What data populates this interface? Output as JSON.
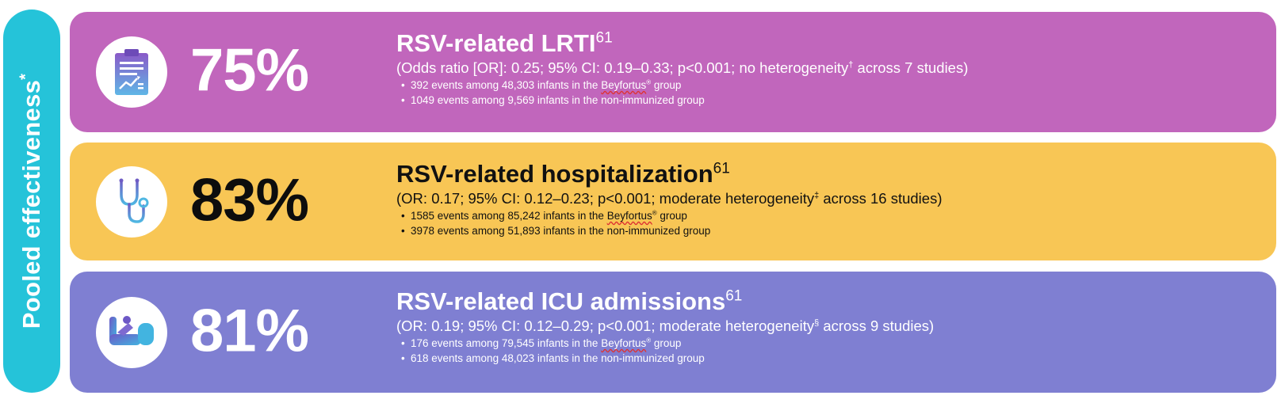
{
  "side_label": {
    "text": "Pooled effectiveness",
    "mark": "*"
  },
  "colors": {
    "side_tab": "#25c3d9",
    "panel_lrti": "#c166bc",
    "panel_hosp": "#f8c655",
    "panel_icu": "#7f7fd2"
  },
  "panels": [
    {
      "icon": "clipboard-chart-icon",
      "percent": "75%",
      "title": "RSV-related LRTI",
      "title_ref": "61",
      "stats": "(Odds ratio [OR]: 0.25; 95% CI: 0.19–0.33; p<0.001; no heterogeneity",
      "stats_mark": "†",
      "stats_tail": " across 7 studies)",
      "bullets": [
        {
          "pre": "392 events among 48,303 infants in the ",
          "brand": "Beyfortus",
          "reg": "®",
          "post": " group"
        },
        {
          "text": "1049 events among 9,569 infants in the non-immunized group"
        }
      ]
    },
    {
      "icon": "stethoscope-icon",
      "percent": "83%",
      "title": "RSV-related hospitalization",
      "title_ref": "61",
      "stats": "(OR: 0.17; 95% CI: 0.12–0.23; p<0.001; moderate heterogeneity",
      "stats_mark": "‡",
      "stats_tail": " across 16 studies)",
      "bullets": [
        {
          "pre": "1585 events among 85,242 infants in the ",
          "brand": "Beyfortus",
          "reg": "®",
          "post": " group"
        },
        {
          "text": "3978 events among 51,893 infants in the non-immunized group"
        }
      ]
    },
    {
      "icon": "icu-bed-icon",
      "percent": "81%",
      "title": "RSV-related ICU admissions",
      "title_ref": "61",
      "stats": " (OR: 0.19; 95% CI: 0.12–0.29; p<0.001; moderate heterogeneity",
      "stats_mark": "§",
      "stats_tail": " across 9 studies)",
      "bullets": [
        {
          "pre": "176 events among 79,545 infants in the ",
          "brand": "Beyfortus",
          "reg": "®",
          "post": " group"
        },
        {
          "text": "618 events among 48,023 infants in the non-immunized group"
        }
      ]
    }
  ]
}
